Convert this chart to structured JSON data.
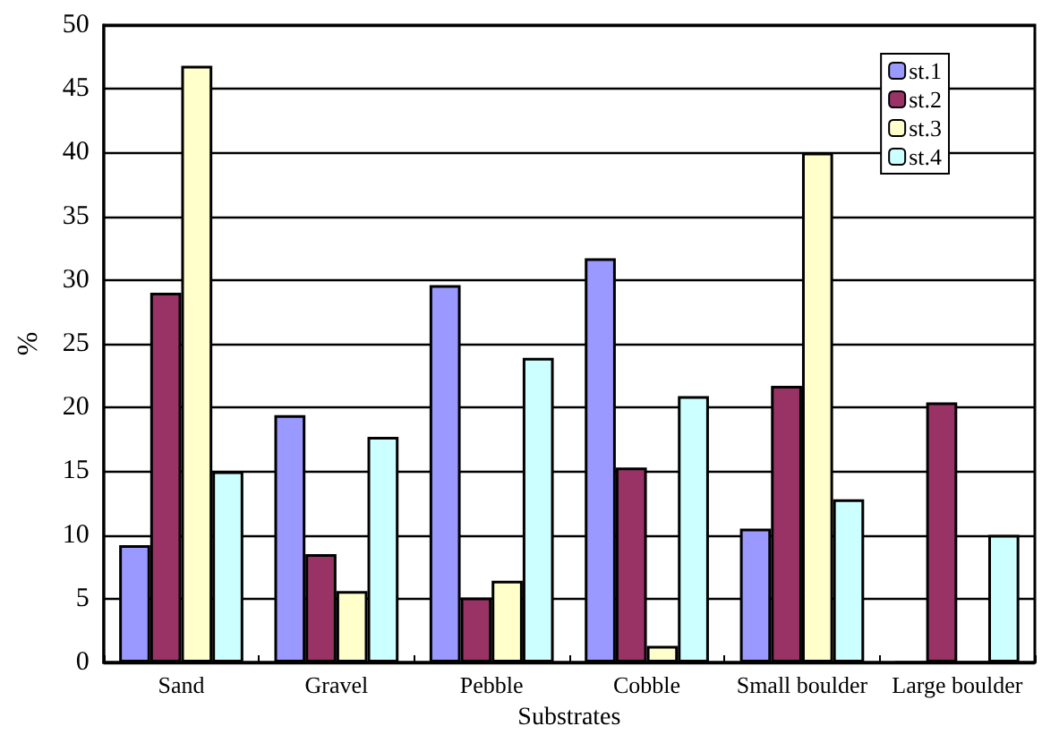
{
  "chart_data": {
    "type": "bar",
    "xlabel": "Substrates",
    "ylabel": "%",
    "categories": [
      "Sand",
      "Gravel",
      "Pebble",
      "Cobble",
      "Small boulder",
      "Large boulder"
    ],
    "series": [
      {
        "name": "st.1",
        "color": "#9999ff",
        "values": [
          9.2,
          19.4,
          29.6,
          31.7,
          10.5,
          0
        ]
      },
      {
        "name": "st.2",
        "color": "#993366",
        "values": [
          29,
          8.5,
          5.1,
          15.3,
          21.7,
          20.4
        ]
      },
      {
        "name": "st.3",
        "color": "#ffffcc",
        "values": [
          46.8,
          5.6,
          6.4,
          1.3,
          40,
          0
        ]
      },
      {
        "name": "st.4",
        "color": "#ccffff",
        "values": [
          15,
          17.7,
          23.9,
          20.9,
          12.8,
          10
        ]
      }
    ],
    "ylim": [
      0,
      50
    ],
    "yticks": [
      0,
      5,
      10,
      15,
      20,
      25,
      30,
      35,
      40,
      45,
      50
    ],
    "grid": "y",
    "legend": "top right"
  }
}
